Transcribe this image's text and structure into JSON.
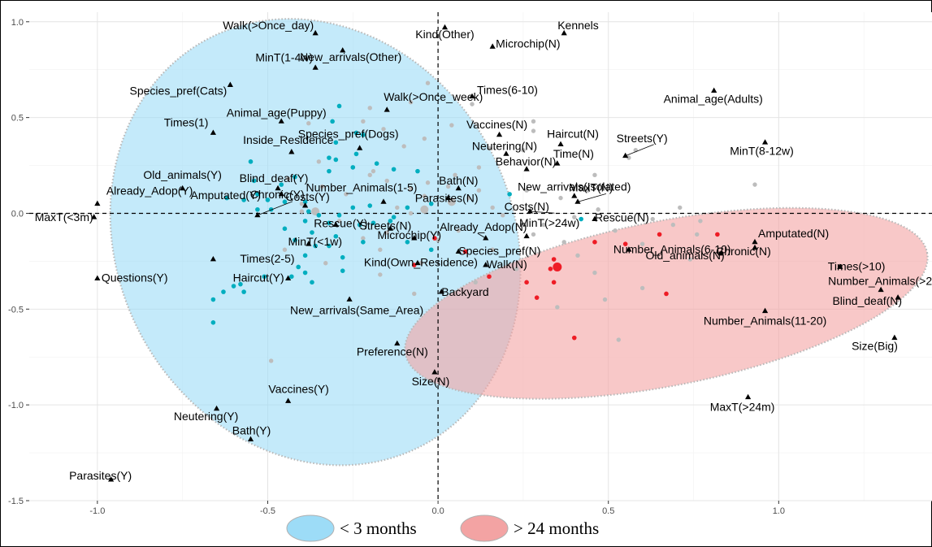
{
  "chart_data": {
    "type": "scatter",
    "xlim": [
      -1.2,
      1.45
    ],
    "ylim": [
      -1.5,
      1.05
    ],
    "x_ticks": [
      "-1.0",
      "-0.5",
      "0.0",
      "0.5",
      "1.0"
    ],
    "x_tick_values": [
      -1.0,
      -0.5,
      0.0,
      0.5,
      1.0
    ],
    "y_ticks": [
      "1.0",
      "0.5",
      "0.0",
      "-0.5",
      "-1.0",
      "-1.5"
    ],
    "y_tick_values": [
      1.0,
      0.5,
      0.0,
      -0.5,
      -1.0,
      -1.5
    ],
    "grid": true,
    "legend_position": "bottom",
    "colors": {
      "cyan_group": "#00aebf",
      "red_group": "#ee1c25",
      "other": "#bdbdbd",
      "blue_ellipse": "#9ddcf7",
      "red_ellipse": "#f3a3a3",
      "category_marker": "#000000"
    },
    "legend": [
      {
        "label": "< 3 months",
        "color": "#9ddcf7"
      },
      {
        "label": "> 24 months",
        "color": "#f3a3a3"
      }
    ],
    "ellipses": [
      {
        "group": "< 3 months",
        "cx": -0.36,
        "cy": -0.15,
        "rx": 0.58,
        "ry": 1.2,
        "angle_deg": -28
      },
      {
        "group": "> 24 months",
        "cx": 0.67,
        "cy": -0.47,
        "rx": 0.78,
        "ry": 0.43,
        "angle_deg": -11
      }
    ],
    "categories": [
      {
        "label": "Walk(>Once_day)",
        "x": -0.36,
        "y": 0.94
      },
      {
        "label": "Kind(Other)",
        "x": 0.02,
        "y": 0.97
      },
      {
        "label": "Kennels",
        "x": 0.37,
        "y": 0.94
      },
      {
        "label": "Microchip(N)",
        "x": 0.16,
        "y": 0.87
      },
      {
        "label": "New_arrivals(Other)",
        "x": -0.28,
        "y": 0.85
      },
      {
        "label": "MinT(1-4w)",
        "x": -0.36,
        "y": 0.76
      },
      {
        "label": "Species_pref(Cats)",
        "x": -0.61,
        "y": 0.67
      },
      {
        "label": "Walk(>Once_week)",
        "x": -0.15,
        "y": 0.54
      },
      {
        "label": "Times(6-10)",
        "x": 0.1,
        "y": 0.61
      },
      {
        "label": "Animal_age(Adults)",
        "x": 0.81,
        "y": 0.64
      },
      {
        "label": "Animal_age(Puppy)",
        "x": -0.46,
        "y": 0.48
      },
      {
        "label": "Times(1)",
        "x": -0.66,
        "y": 0.42
      },
      {
        "label": "Vaccines(N)",
        "x": 0.18,
        "y": 0.41
      },
      {
        "label": "Haircut(N)",
        "x": 0.36,
        "y": 0.36
      },
      {
        "label": "Neutering(N)",
        "x": 0.2,
        "y": 0.31
      },
      {
        "label": "Time(N)",
        "x": 0.35,
        "y": 0.26
      },
      {
        "label": "MinT(8-12w)",
        "x": 0.96,
        "y": 0.37
      },
      {
        "label": "Inside_Residence",
        "x": -0.43,
        "y": 0.32
      },
      {
        "label": "Species_pref(Dogs)",
        "x": -0.23,
        "y": 0.34
      },
      {
        "label": "Blind_deaf(Y)",
        "x": -0.47,
        "y": 0.13
      },
      {
        "label": "Behavior(N)",
        "x": 0.26,
        "y": 0.23
      },
      {
        "label": "Streets(Y)",
        "x": 0.55,
        "y": 0.3
      },
      {
        "label": "Bath(N)",
        "x": 0.06,
        "y": 0.13
      },
      {
        "label": "Old_animals(Y)",
        "x": -0.75,
        "y": 0.13
      },
      {
        "label": "Number_Animals(1-5)",
        "x": -0.16,
        "y": 0.06
      },
      {
        "label": "New_arrivals(Isolated)",
        "x": 0.4,
        "y": 0.09
      },
      {
        "label": "Already_Adop(Y)",
        "x": -1.0,
        "y": 0.05
      },
      {
        "label": "Chronic(Y)",
        "x": -0.46,
        "y": 0.1
      },
      {
        "label": "Costs(Y)",
        "x": -0.39,
        "y": 0.04
      },
      {
        "label": "MaxT(N)",
        "x": 0.41,
        "y": 0.06
      },
      {
        "label": "Parasites(N)",
        "x": 0.03,
        "y": 0.08
      },
      {
        "label": "MaxT(<3m)",
        "x": -1.01,
        "y": -0.02
      },
      {
        "label": "Amputated(Y)",
        "x": -0.53,
        "y": -0.01
      },
      {
        "label": "Streets(N)",
        "x": -0.14,
        "y": -0.08
      },
      {
        "label": "Costs(N)",
        "x": 0.27,
        "y": 0.01
      },
      {
        "label": "Rescue(N)",
        "x": 0.46,
        "y": -0.03
      },
      {
        "label": "Rescue(Y)",
        "x": -0.3,
        "y": -0.06
      },
      {
        "label": "Microchip(Y)",
        "x": -0.07,
        "y": -0.13
      },
      {
        "label": "Already_Adop(N)",
        "x": 0.14,
        "y": -0.13
      },
      {
        "label": "MinT(>24w)",
        "x": 0.26,
        "y": -0.12
      },
      {
        "label": "MinT(<1w)",
        "x": -0.38,
        "y": -0.16
      },
      {
        "label": "Species_pref(N)",
        "x": 0.06,
        "y": -0.2
      },
      {
        "label": "Number_Animals(6-10)",
        "x": 0.56,
        "y": -0.19
      },
      {
        "label": "Amputated(N)",
        "x": 0.93,
        "y": -0.15
      },
      {
        "label": "Old_animals(N)",
        "x": 0.83,
        "y": -0.21
      },
      {
        "label": "Chronic(N)",
        "x": 0.93,
        "y": -0.18
      },
      {
        "label": "Times(>10)",
        "x": 1.18,
        "y": -0.28
      },
      {
        "label": "Times(2-5)",
        "x": -0.66,
        "y": -0.24
      },
      {
        "label": "Kind(Own_Residence)",
        "x": -0.06,
        "y": -0.26
      },
      {
        "label": "Walk(N)",
        "x": 0.14,
        "y": -0.27
      },
      {
        "label": "Haircut(Y)",
        "x": -0.44,
        "y": -0.34
      },
      {
        "label": "Backyard",
        "x": 0.01,
        "y": -0.41
      },
      {
        "label": "Number_Animals(>20)",
        "x": 1.3,
        "y": -0.4
      },
      {
        "label": "Blind_deaf(N)",
        "x": 1.35,
        "y": -0.44
      },
      {
        "label": "Questions(Y)",
        "x": -1.0,
        "y": -0.34
      },
      {
        "label": "New_arrivals(Same_Area)",
        "x": -0.26,
        "y": -0.45
      },
      {
        "label": "Number_Animals(11-20)",
        "x": 0.96,
        "y": -0.51
      },
      {
        "label": "Size(Big)",
        "x": 1.34,
        "y": -0.65
      },
      {
        "label": "Preference(N)",
        "x": -0.12,
        "y": -0.68
      },
      {
        "label": "Size(N)",
        "x": -0.01,
        "y": -0.83
      },
      {
        "label": "MaxT(>24m)",
        "x": 0.91,
        "y": -0.96
      },
      {
        "label": "Vaccines(Y)",
        "x": -0.44,
        "y": -0.98
      },
      {
        "label": "Neutering(Y)",
        "x": -0.65,
        "y": -1.02
      },
      {
        "label": "Bath(Y)",
        "x": -0.55,
        "y": -1.18
      },
      {
        "label": "Parasites(Y)",
        "x": -0.96,
        "y": -1.39
      }
    ],
    "points_cyan": [
      [
        -0.29,
        0.56
      ],
      [
        -0.31,
        0.48
      ],
      [
        -0.24,
        0.42
      ],
      [
        -0.22,
        0.41
      ],
      [
        -0.3,
        0.37
      ],
      [
        -0.24,
        0.31
      ],
      [
        -0.3,
        0.28
      ],
      [
        -0.32,
        0.29
      ],
      [
        -0.18,
        0.26
      ],
      [
        -0.25,
        0.24
      ],
      [
        -0.13,
        0.23
      ],
      [
        -0.06,
        0.22
      ],
      [
        -0.32,
        0.22
      ],
      [
        -0.55,
        0.27
      ],
      [
        -0.42,
        0.19
      ],
      [
        -0.46,
        0.15
      ],
      [
        -0.54,
        0.17
      ],
      [
        -0.53,
        0.1
      ],
      [
        -0.62,
        0.08
      ],
      [
        -0.57,
        0.07
      ],
      [
        -0.5,
        0.07
      ],
      [
        -0.45,
        0.06
      ],
      [
        -0.39,
        0.06
      ],
      [
        -0.53,
        0.02
      ],
      [
        -0.49,
        0.02
      ],
      [
        -0.38,
        0.01
      ],
      [
        -0.35,
        -0.01
      ],
      [
        -0.29,
        -0.01
      ],
      [
        -0.25,
        0.03
      ],
      [
        -0.2,
        0.04
      ],
      [
        -0.13,
        -0.02
      ],
      [
        -0.09,
        0.03
      ],
      [
        -0.02,
        0.05
      ],
      [
        -0.39,
        -0.04
      ],
      [
        -0.32,
        -0.05
      ],
      [
        -0.23,
        -0.06
      ],
      [
        -0.19,
        -0.05
      ],
      [
        -0.14,
        -0.04
      ],
      [
        -0.45,
        -0.08
      ],
      [
        -0.37,
        -0.1
      ],
      [
        -0.42,
        -0.14
      ],
      [
        -0.3,
        -0.12
      ],
      [
        -0.22,
        -0.15
      ],
      [
        -0.36,
        -0.17
      ],
      [
        -0.32,
        -0.17
      ],
      [
        -0.39,
        -0.22
      ],
      [
        -0.28,
        -0.23
      ],
      [
        -0.09,
        -0.15
      ],
      [
        -0.02,
        -0.19
      ],
      [
        -0.41,
        -0.28
      ],
      [
        -0.39,
        -0.31
      ],
      [
        -0.28,
        -0.3
      ],
      [
        -0.37,
        -0.36
      ],
      [
        -0.43,
        -0.33
      ],
      [
        -0.51,
        -0.33
      ],
      [
        -0.58,
        -0.37
      ],
      [
        -0.6,
        -0.38
      ],
      [
        -0.57,
        -0.41
      ],
      [
        -0.63,
        -0.41
      ],
      [
        -0.66,
        -0.45
      ],
      [
        -0.66,
        -0.57
      ],
      [
        0.21,
        0.1
      ],
      [
        0.42,
        -0.03
      ]
    ],
    "points_red": [
      [
        -0.01,
        -0.13
      ],
      [
        -0.07,
        -0.27
      ],
      [
        0.08,
        -0.2
      ],
      [
        0.34,
        -0.24
      ],
      [
        0.46,
        -0.15
      ],
      [
        0.33,
        -0.29
      ],
      [
        0.29,
        -0.44
      ],
      [
        0.34,
        -0.36
      ],
      [
        0.55,
        -0.16
      ],
      [
        0.65,
        -0.11
      ],
      [
        0.82,
        -0.11
      ],
      [
        0.67,
        -0.42
      ],
      [
        0.4,
        -0.65
      ],
      [
        0.15,
        -0.33
      ],
      [
        0.26,
        -0.36
      ]
    ],
    "points_red_large": [
      [
        0.35,
        -0.28
      ]
    ],
    "points_grey": [
      [
        -0.03,
        0.68
      ],
      [
        -0.08,
        0.58
      ],
      [
        -0.2,
        0.55
      ],
      [
        0.1,
        0.57
      ],
      [
        -0.22,
        0.48
      ],
      [
        -0.38,
        0.47
      ],
      [
        0.04,
        0.46
      ],
      [
        0.28,
        0.48
      ],
      [
        -0.16,
        0.44
      ],
      [
        0.28,
        0.43
      ],
      [
        -0.04,
        0.39
      ],
      [
        0.15,
        0.34
      ],
      [
        0.25,
        0.33
      ],
      [
        -0.1,
        0.35
      ],
      [
        0.58,
        0.33
      ],
      [
        0.56,
        0.29
      ],
      [
        -0.35,
        0.27
      ],
      [
        0.12,
        0.24
      ],
      [
        -0.25,
        0.24
      ],
      [
        -0.19,
        0.22
      ],
      [
        -0.2,
        0.2
      ],
      [
        0.05,
        0.2
      ],
      [
        -0.44,
        0.18
      ],
      [
        -0.15,
        0.17
      ],
      [
        -0.03,
        0.16
      ],
      [
        0.46,
        0.2
      ],
      [
        -0.34,
        0.14
      ],
      [
        -0.08,
        0.13
      ],
      [
        0.03,
        0.14
      ],
      [
        0.12,
        0.12
      ],
      [
        0.26,
        0.12
      ],
      [
        0.44,
        0.12
      ],
      [
        -0.27,
        0.1
      ],
      [
        -0.04,
        0.09
      ],
      [
        0.09,
        0.08
      ],
      [
        0.36,
        0.08
      ],
      [
        0.93,
        0.15
      ],
      [
        -0.4,
        0.05
      ],
      [
        -0.12,
        0.03
      ],
      [
        0.16,
        0.03
      ],
      [
        0.47,
        0.02
      ],
      [
        0.71,
        0.03
      ],
      [
        -0.4,
        0.01
      ],
      [
        -0.08,
        0.0
      ],
      [
        0.19,
        -0.01
      ],
      [
        0.4,
        -0.02
      ],
      [
        0.63,
        -0.03
      ],
      [
        0.77,
        -0.04
      ],
      [
        -0.29,
        -0.04
      ],
      [
        0.31,
        -0.06
      ],
      [
        0.69,
        -0.06
      ],
      [
        -0.15,
        -0.1
      ],
      [
        0.06,
        -0.09
      ],
      [
        0.28,
        -0.11
      ],
      [
        0.52,
        -0.09
      ],
      [
        0.76,
        -0.11
      ],
      [
        -0.22,
        -0.13
      ],
      [
        0.0,
        -0.14
      ],
      [
        0.37,
        -0.15
      ],
      [
        0.6,
        -0.16
      ],
      [
        -0.45,
        -0.19
      ],
      [
        -0.17,
        -0.19
      ],
      [
        0.16,
        -0.19
      ],
      [
        0.41,
        -0.22
      ],
      [
        0.74,
        -0.24
      ],
      [
        -0.33,
        -0.26
      ],
      [
        -0.05,
        -0.26
      ],
      [
        0.23,
        -0.29
      ],
      [
        0.46,
        -0.31
      ],
      [
        -0.17,
        -0.32
      ],
      [
        0.11,
        -0.36
      ],
      [
        0.6,
        -0.39
      ],
      [
        -0.07,
        -0.42
      ],
      [
        0.35,
        -0.49
      ],
      [
        0.49,
        -0.45
      ],
      [
        -0.49,
        -0.77
      ],
      [
        0.53,
        -0.66
      ]
    ],
    "points_grey_large": [
      [
        -0.04,
        0.02
      ],
      [
        0.04,
        0.06
      ],
      [
        -0.36,
        0.01
      ]
    ]
  }
}
